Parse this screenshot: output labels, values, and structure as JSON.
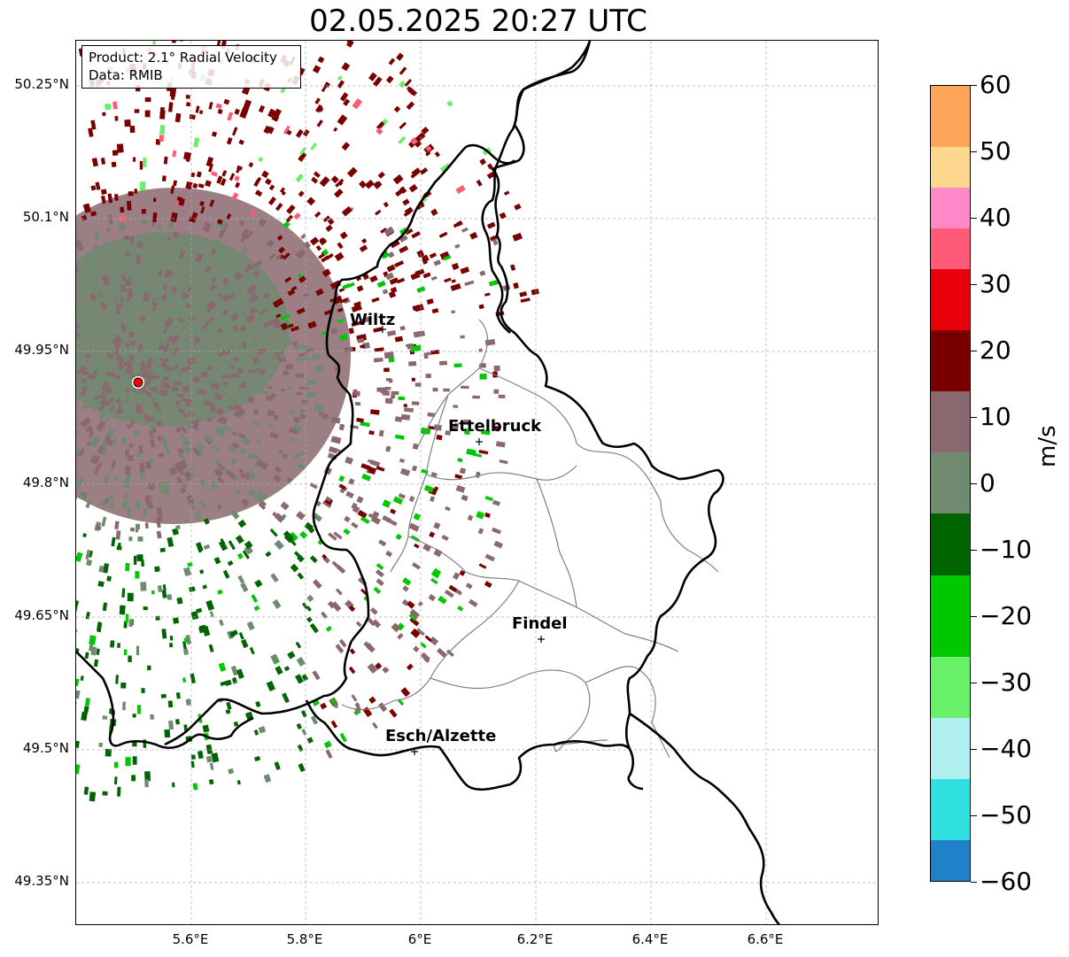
{
  "title": "02.05.2025 20:27 UTC",
  "info": {
    "product": "Product: 2.1° Radial Velocity",
    "data": "Data: RMIB"
  },
  "lat_ticks": [
    "50.25°N",
    "50.1°N",
    "49.95°N",
    "49.8°N",
    "49.65°N",
    "49.5°N",
    "49.35°N"
  ],
  "lon_ticks": [
    "5.6°E",
    "5.8°E",
    "6°E",
    "6.2°E",
    "6.4°E",
    "6.6°E"
  ],
  "cities": [
    {
      "name": "Wiltz"
    },
    {
      "name": "Ettelbruck"
    },
    {
      "name": "Findel"
    },
    {
      "name": "Esch/Alzette"
    }
  ],
  "colorbar": {
    "unit": "m/s",
    "ticks": [
      "60",
      "50",
      "40",
      "30",
      "20",
      "10",
      "0",
      "−10",
      "−20",
      "−30",
      "−40",
      "−50",
      "−60"
    ],
    "colors": {
      "orange": "#ffa55a",
      "light_orange": "#ffd890",
      "pink": "#ff88c8",
      "salmon": "#ff5a78",
      "red": "#e8000a",
      "dark_red": "#7a0000",
      "brown_gray": "#8a6870",
      "gray_green": "#6f8a6f",
      "dark_green": "#006400",
      "green": "#00c800",
      "light_green": "#68f068",
      "pale_cyan": "#b0f0f0",
      "cyan": "#30e0e0",
      "blue": "#2080c8"
    }
  },
  "map": {
    "radar_marker_color": "#ff0000",
    "border_color": "#000000",
    "canton_color": "#808080"
  }
}
